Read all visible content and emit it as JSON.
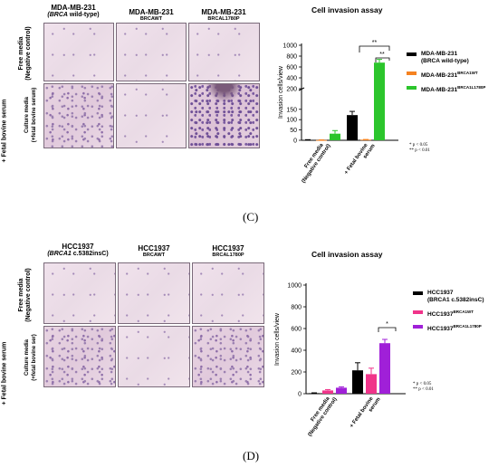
{
  "panel_c": {
    "label": "(C)",
    "columns": [
      {
        "title": "MDA-MB-231",
        "sub_pre": "(",
        "sub_italic": "BRCA",
        "sub_post": " wild-type)"
      },
      {
        "title": "MDA-MB-231",
        "sub": "BRCAWT"
      },
      {
        "title": "MDA-MB-231",
        "sub": "BRCAL1780P"
      }
    ],
    "row_labels": [
      {
        "line1": "Free media",
        "line2": "(Negative control)"
      },
      {
        "line1": "Culture media",
        "line2": "(+fetal bovine serum)"
      }
    ],
    "side_label": "+ Fetal bovine serum",
    "legend": [
      {
        "name": "MDA-MB-231",
        "name2": "(BRCA wild-type)",
        "color": "#000000"
      },
      {
        "name": "MDA-MB-231",
        "sup": "BRCA1WT",
        "color": "#f58220"
      },
      {
        "name": "MDA-MB-231",
        "sup": "BRCA1L1780P",
        "color": "#2cc52c"
      }
    ],
    "pnotes": [
      "* p < 0.05",
      "** p < 0.01"
    ],
    "sig": [
      "**",
      "**"
    ]
  },
  "panel_d": {
    "label": "(D)",
    "columns": [
      {
        "title": "HCC1937",
        "sub_pre": "(",
        "sub_italic": "BRCA1",
        "sub_post": " c.5382insC)"
      },
      {
        "title": "HCC1937",
        "sub": "BRCAWT"
      },
      {
        "title": "HCC1937",
        "sub": "BRCAL1780P"
      }
    ],
    "row_labels": [
      {
        "line1": "Free media",
        "line2": "(Negative control)"
      },
      {
        "line1": "Culture media",
        "line2": "(+fetal bovine ser)"
      }
    ],
    "side_label": "+ Fetal bovine serum",
    "legend": [
      {
        "name": "HCC1937",
        "name2": "(BRCA1 c.5382insC)",
        "color": "#000000"
      },
      {
        "name": "HCC1937",
        "sup": "BRCA1WT",
        "color": "#f0348a"
      },
      {
        "name": "HCC1937",
        "sup": "BRCA1L1780P",
        "color": "#a020d8"
      }
    ],
    "pnotes": [
      "* p < 0.05",
      "** p < 0.01"
    ],
    "sig": [
      "*"
    ]
  },
  "chart_data": [
    {
      "type": "bar",
      "title": "Cell invasion assay",
      "ylabel": "Invasion cells/view",
      "categories": [
        "Free media (Negative control)",
        "+ Fetal bovine serum"
      ],
      "broken_axis": true,
      "ylim_lower": [
        0,
        250
      ],
      "ylim_upper": [
        200,
        1000
      ],
      "yticks_lower": [
        0,
        50,
        100,
        150,
        200
      ],
      "yticks_upper": [
        200,
        400,
        600,
        800,
        1000
      ],
      "series": [
        {
          "name": "MDA-MB-231 (BRCA wild-type)",
          "color": "#000000",
          "values": [
            2,
            122
          ],
          "errors": [
            1,
            18
          ]
        },
        {
          "name": "MDA-MB-231 BRCA1WT",
          "color": "#f58220",
          "values": [
            1,
            3
          ],
          "errors": [
            1,
            1
          ]
        },
        {
          "name": "MDA-MB-231 BRCA1L1780P",
          "color": "#2cc52c",
          "values": [
            32,
            680
          ],
          "errors": [
            15,
            60
          ]
        }
      ]
    },
    {
      "type": "bar",
      "title": "Cell invasion assay",
      "ylabel": "Invasion cells/view",
      "categories": [
        "Free media (Negative control)",
        "+ Fetal bovine serum"
      ],
      "ylim": [
        0,
        1000
      ],
      "yticks": [
        0,
        200,
        400,
        600,
        800,
        1000
      ],
      "series": [
        {
          "name": "HCC1937 (BRCA1 c.5382insC)",
          "color": "#000000",
          "values": [
            5,
            215
          ],
          "errors": [
            3,
            70
          ]
        },
        {
          "name": "HCC1937 BRCA1WT",
          "color": "#f0348a",
          "values": [
            30,
            180
          ],
          "errors": [
            8,
            55
          ]
        },
        {
          "name": "HCC1937 BRCA1L1780P",
          "color": "#a020d8",
          "values": [
            55,
            465
          ],
          "errors": [
            8,
            35
          ]
        }
      ]
    }
  ]
}
